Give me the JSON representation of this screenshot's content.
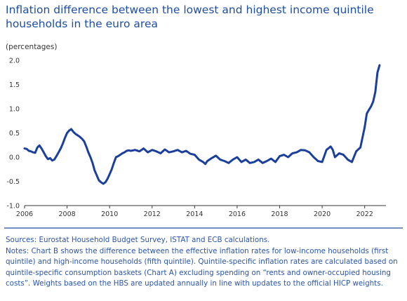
{
  "title": "Inflation difference between the lowest and highest income quintile households in the euro area",
  "notes": {
    "sources": "Sources: Eurostat Household Budget Survey, ISTAT and ECB calculations.",
    "notes": "Notes: Chart B shows the difference between the effective inflation rates for low-income households (first quintile) and high-income households (fifth quintile). Quintile-specific inflation rates are calculated based on quintile-specific consumption baskets (Chart A) excluding spending on “rents and owner-occupied housing costs”. Weights based on the HBS are updated annually in line with updates to the official HICP weights."
  },
  "colors": {
    "line": "#1b3f9a",
    "text": "#1f4ea1",
    "axis": "#3a3a3a",
    "grid": "#ffffff"
  },
  "chart_data": {
    "type": "line",
    "unit_label": "(percentages)",
    "xlim": [
      2006,
      2023.0
    ],
    "ylim": [
      -1.0,
      2.0
    ],
    "x_ticks": [
      2006,
      2008,
      2010,
      2012,
      2014,
      2016,
      2018,
      2020,
      2022
    ],
    "x_tick_labels": [
      "2006",
      "2008",
      "2010",
      "2012",
      "2014",
      "2016",
      "2018",
      "2020",
      "2022"
    ],
    "y_ticks": [
      -1.0,
      -0.5,
      0.0,
      0.5,
      1.0,
      1.5,
      2.0
    ],
    "y_tick_labels": [
      "-1.0",
      "-0.5",
      "0.0",
      "0.5",
      "1.0",
      "1.5",
      "2.0"
    ],
    "series": [
      {
        "values_x": [
          2006.0,
          2006.1,
          2006.2,
          2006.3,
          2006.4,
          2006.5,
          2006.6,
          2006.7,
          2006.8,
          2006.9,
          2007.0,
          2007.1,
          2007.2,
          2007.3,
          2007.4,
          2007.5,
          2007.6,
          2007.7,
          2007.8,
          2007.9,
          2008.0,
          2008.1,
          2008.2,
          2008.3,
          2008.4,
          2008.5,
          2008.6,
          2008.7,
          2008.8,
          2008.9,
          2009.0,
          2009.1,
          2009.2,
          2009.3,
          2009.4,
          2009.5,
          2009.6,
          2009.7,
          2009.8,
          2009.9,
          2010.0,
          2010.1,
          2010.2,
          2010.3,
          2010.4,
          2010.5,
          2010.6,
          2010.7,
          2010.8,
          2010.9,
          2011.0,
          2011.2,
          2011.4,
          2011.6,
          2011.8,
          2012.0,
          2012.2,
          2012.4,
          2012.6,
          2012.8,
          2013.0,
          2013.2,
          2013.4,
          2013.6,
          2013.8,
          2014.0,
          2014.2,
          2014.4,
          2014.5,
          2014.6,
          2014.8,
          2015.0,
          2015.2,
          2015.4,
          2015.6,
          2015.8,
          2016.0,
          2016.2,
          2016.4,
          2016.6,
          2016.8,
          2017.0,
          2017.2,
          2017.4,
          2017.6,
          2017.8,
          2018.0,
          2018.2,
          2018.4,
          2018.6,
          2018.8,
          2019.0,
          2019.2,
          2019.4,
          2019.6,
          2019.8,
          2020.0,
          2020.2,
          2020.4,
          2020.5,
          2020.6,
          2020.8,
          2021.0,
          2021.2,
          2021.4,
          2021.6,
          2021.8,
          2022.0,
          2022.1,
          2022.2,
          2022.3,
          2022.4,
          2022.5,
          2022.6,
          2022.7
        ],
        "values_y": [
          0.18,
          0.17,
          0.13,
          0.12,
          0.1,
          0.09,
          0.2,
          0.24,
          0.18,
          0.1,
          0.02,
          -0.04,
          -0.02,
          -0.07,
          -0.05,
          0.02,
          0.1,
          0.18,
          0.28,
          0.4,
          0.5,
          0.55,
          0.58,
          0.52,
          0.48,
          0.45,
          0.42,
          0.38,
          0.33,
          0.22,
          0.1,
          0.0,
          -0.12,
          -0.28,
          -0.38,
          -0.48,
          -0.52,
          -0.55,
          -0.52,
          -0.45,
          -0.35,
          -0.25,
          -0.12,
          0.0,
          0.02,
          0.05,
          0.08,
          0.1,
          0.13,
          0.14,
          0.13,
          0.15,
          0.12,
          0.18,
          0.1,
          0.15,
          0.12,
          0.08,
          0.16,
          0.1,
          0.12,
          0.15,
          0.1,
          0.13,
          0.07,
          0.05,
          -0.05,
          -0.1,
          -0.14,
          -0.08,
          -0.02,
          0.03,
          -0.05,
          -0.08,
          -0.12,
          -0.05,
          0.0,
          -0.1,
          -0.05,
          -0.12,
          -0.1,
          -0.05,
          -0.12,
          -0.08,
          -0.03,
          -0.1,
          0.02,
          0.05,
          0.0,
          0.08,
          0.1,
          0.15,
          0.14,
          0.1,
          0.0,
          -0.08,
          -0.1,
          0.15,
          0.22,
          0.15,
          0.0,
          0.08,
          0.05,
          -0.05,
          -0.1,
          0.12,
          0.2,
          0.62,
          0.9,
          0.98,
          1.05,
          1.15,
          1.35,
          1.75,
          1.9
        ]
      }
    ]
  }
}
